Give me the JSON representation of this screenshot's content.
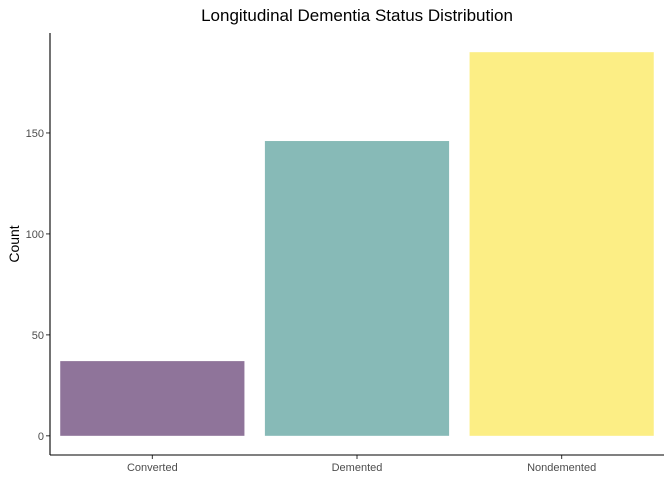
{
  "chart_data": {
    "type": "bar",
    "title": "Longitudinal Dementia Status Distribution",
    "xlabel": "",
    "ylabel": "Count",
    "categories": [
      "Converted",
      "Demented",
      "Nondemented"
    ],
    "values": [
      37,
      146,
      190
    ],
    "colors": [
      "#8f749a",
      "#87bab7",
      "#fcee85"
    ],
    "yticks": [
      0,
      50,
      100,
      150
    ],
    "ylim": [
      -9.5,
      199.5
    ],
    "grid": false,
    "legend": "none"
  }
}
